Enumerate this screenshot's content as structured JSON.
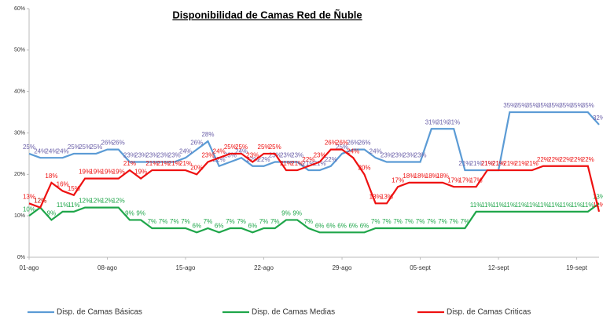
{
  "chart_data": {
    "type": "line",
    "title": "Disponibilidad de Camas Red de Ñuble",
    "categories": [
      "01-ago",
      null,
      null,
      null,
      null,
      null,
      null,
      "08-ago",
      null,
      null,
      null,
      null,
      null,
      null,
      "15-ago",
      null,
      null,
      null,
      null,
      null,
      null,
      "22-ago",
      null,
      null,
      null,
      null,
      null,
      null,
      "29-ago",
      null,
      null,
      null,
      null,
      null,
      null,
      "05-sept",
      null,
      null,
      null,
      null,
      null,
      null,
      "12-sept",
      null,
      null,
      null,
      null,
      null,
      null,
      "19-sept",
      null,
      null
    ],
    "ylim": [
      0,
      60
    ],
    "yticks": [
      {
        "value": 0,
        "label": "0%"
      },
      {
        "value": 10,
        "label": "10%"
      },
      {
        "value": 20,
        "label": "20%"
      },
      {
        "value": 30,
        "label": "30%"
      },
      {
        "value": 40,
        "label": "40%"
      },
      {
        "value": 50,
        "label": "50%"
      },
      {
        "value": 60,
        "label": "60%"
      }
    ],
    "series": [
      {
        "name": "Disp. de Camas Básicas",
        "color": "#5b9bd5",
        "label_color": "#6a5fa8",
        "values": [
          25,
          24,
          24,
          24,
          25,
          25,
          25,
          26,
          26,
          23,
          23,
          23,
          23,
          23,
          24,
          26,
          28,
          22,
          23,
          24,
          22,
          22,
          23,
          23,
          23,
          21,
          21,
          22,
          25,
          26,
          26,
          24,
          23,
          23,
          23,
          23,
          31,
          31,
          31,
          21,
          21,
          21,
          21,
          35,
          35,
          35,
          35,
          35,
          35,
          35,
          35,
          32
        ],
        "value_labels": [
          "25%",
          "24%",
          "24%",
          "24%",
          "25%",
          "25%",
          "25%",
          "26%",
          "26%",
          "23%",
          "23%",
          "23%",
          "23%",
          "23%",
          "24%",
          "26%",
          "28%",
          "22%",
          "23%",
          "24%",
          "22%",
          "22%",
          "23%",
          "23%",
          "23%",
          "21%",
          "21%",
          "22%",
          "25%",
          "26%",
          "26%",
          "24%",
          "23%",
          "23%",
          "23%",
          "23%",
          "31%",
          "31%",
          "31%",
          "21%",
          "21%",
          "21%",
          "21%",
          "35%",
          "35%",
          "35%",
          "35%",
          "35%",
          "35%",
          "35%",
          "35%",
          "32%"
        ]
      },
      {
        "name": "Disp. de Camas Medias",
        "color": "#1fa64a",
        "label_color": "#1fa64a",
        "values": [
          10,
          12,
          9,
          11,
          11,
          12,
          12,
          12,
          12,
          9,
          9,
          7,
          7,
          7,
          7,
          6,
          7,
          6,
          7,
          7,
          6,
          7,
          7,
          9,
          9,
          7,
          6,
          6,
          6,
          6,
          6,
          7,
          7,
          7,
          7,
          7,
          7,
          7,
          7,
          7,
          11,
          11,
          11,
          11,
          11,
          11,
          11,
          11,
          11,
          11,
          11,
          13
        ],
        "value_labels": [
          "10%",
          "12%",
          "9%",
          "11%",
          "11%",
          "12%",
          "12%",
          "12%",
          "12%",
          "9%",
          "9%",
          "7%",
          "7%",
          "7%",
          "7%",
          "6%",
          "7%",
          "6%",
          "7%",
          "7%",
          "6%",
          "7%",
          "7%",
          "9%",
          "9%",
          "7%",
          "6%",
          "6%",
          "6%",
          "6%",
          "6%",
          "7%",
          "7%",
          "7%",
          "7%",
          "7%",
          "7%",
          "7%",
          "7%",
          "7%",
          "11%",
          "11%",
          "11%",
          "11%",
          "11%",
          "11%",
          "11%",
          "11%",
          "11%",
          "11%",
          "11%",
          "13%"
        ]
      },
      {
        "name": "Disp. de Camas Criticas",
        "color": "#ee1111",
        "label_color": "#ee1111",
        "values": [
          13,
          12,
          18,
          16,
          15,
          19,
          19,
          19,
          19,
          21,
          19,
          21,
          21,
          21,
          21,
          20,
          23,
          24,
          25,
          25,
          23,
          25,
          25,
          21,
          21,
          22,
          23,
          26,
          26,
          24,
          20,
          13,
          13,
          17,
          18,
          18,
          18,
          18,
          17,
          17,
          17,
          21,
          21,
          21,
          21,
          21,
          22,
          22,
          22,
          22,
          22,
          11
        ],
        "value_labels": [
          "13%",
          "12%",
          "18%",
          "16%",
          "15%",
          "19%",
          "19%",
          "19%",
          "19%",
          "21%",
          "19%",
          "21%",
          "21%",
          "21%",
          "21%",
          "20%",
          "23%",
          "24%",
          "25%",
          "25%",
          "23%",
          "25%",
          "25%",
          "21%",
          "21%",
          "22%",
          "23%",
          "26%",
          "26%",
          "24%",
          "20%",
          "13%",
          "13%",
          "17%",
          "18%",
          "18%",
          "18%",
          "18%",
          "17%",
          "17%",
          "17%",
          "21%",
          "21%",
          "21%",
          "21%",
          "21%",
          "22%",
          "22%",
          "22%",
          "22%",
          "22%",
          "11%"
        ]
      }
    ]
  }
}
